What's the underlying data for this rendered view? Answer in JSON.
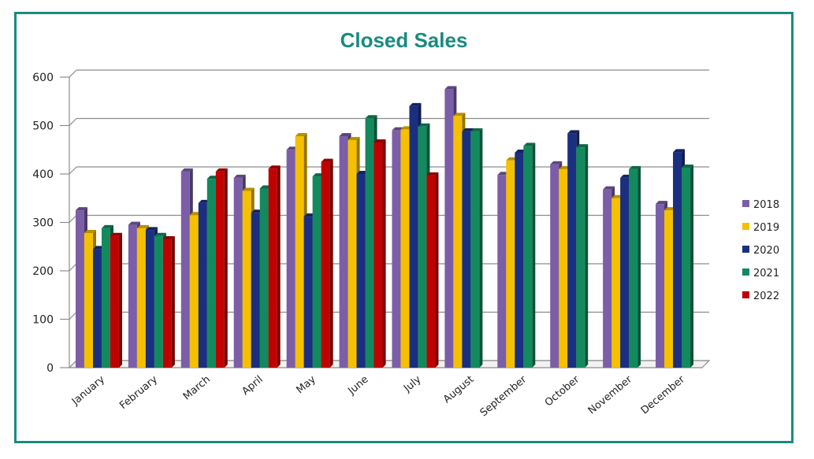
{
  "chart_data": {
    "type": "bar",
    "title": "Closed Sales",
    "xlabel": "",
    "ylabel": "",
    "ylim": [
      0,
      600
    ],
    "yticks": [
      0,
      100,
      200,
      300,
      400,
      500,
      600
    ],
    "grid": true,
    "legend_position": "right",
    "categories": [
      "January",
      "February",
      "March",
      "April",
      "May",
      "June",
      "July",
      "August",
      "September",
      "October",
      "November",
      "December"
    ],
    "series": [
      {
        "name": "2018",
        "color": "#7b5ea7",
        "values": [
          325,
          295,
          405,
          392,
          450,
          478,
          490,
          575,
          398,
          420,
          368,
          338
        ]
      },
      {
        "name": "2019",
        "color": "#f5c000",
        "values": [
          278,
          288,
          315,
          365,
          478,
          470,
          492,
          520,
          428,
          410,
          350,
          325
        ]
      },
      {
        "name": "2020",
        "color": "#1a2f80",
        "values": [
          245,
          284,
          340,
          320,
          312,
          400,
          540,
          488,
          444,
          484,
          392,
          445
        ]
      },
      {
        "name": "2021",
        "color": "#138a5e",
        "values": [
          288,
          272,
          390,
          370,
          395,
          515,
          498,
          488,
          458,
          455,
          410,
          413
        ]
      },
      {
        "name": "2022",
        "color": "#c00000",
        "values": [
          272,
          265,
          405,
          411,
          425,
          465,
          397,
          null,
          null,
          null,
          null,
          null
        ]
      }
    ]
  }
}
